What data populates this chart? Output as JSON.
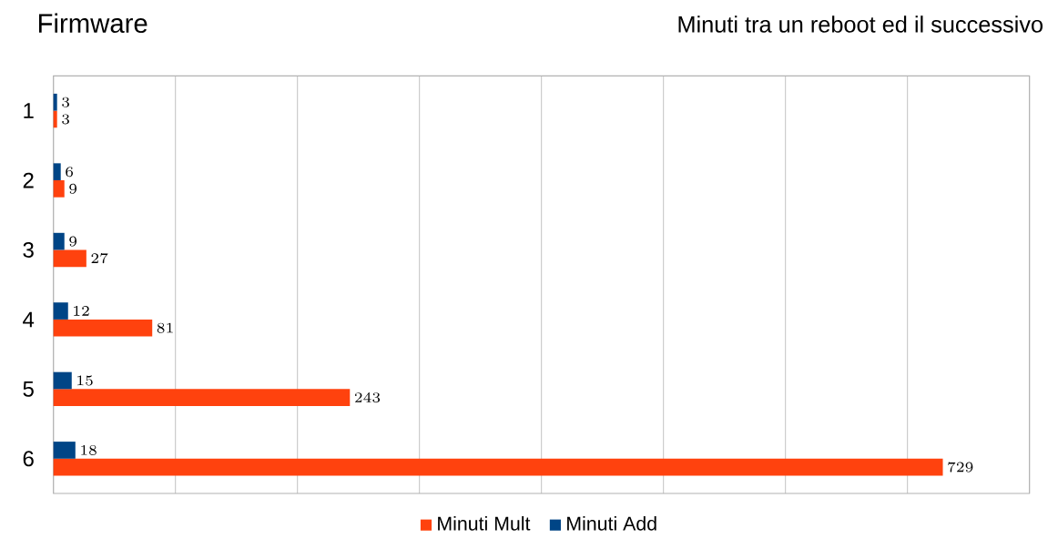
{
  "chart_data": {
    "type": "bar",
    "orientation": "horizontal",
    "title": "Firmware",
    "subtitle": "Minuti tra un reboot ed il successivo",
    "categories": [
      "1",
      "2",
      "3",
      "4",
      "5",
      "6"
    ],
    "series": [
      {
        "name": "Minuti Mult",
        "color": "#ff420e",
        "values": [
          3,
          9,
          27,
          81,
          243,
          729
        ]
      },
      {
        "name": "Minuti Add",
        "color": "#004586",
        "values": [
          3,
          6,
          9,
          12,
          15,
          18
        ]
      }
    ],
    "xlim": [
      0,
      800
    ],
    "xticks": [
      {
        "value": 0,
        "label": null
      },
      {
        "value": 100,
        "label": null
      },
      {
        "value": 200,
        "label": null
      },
      {
        "value": 300,
        "label": null
      },
      {
        "value": 400,
        "label": null
      },
      {
        "value": 500,
        "label": null
      },
      {
        "value": 600,
        "label": null
      },
      {
        "value": 700,
        "label": null
      },
      {
        "value": 800,
        "label": null
      }
    ],
    "tick_labels": "y",
    "grid": "x",
    "legend": "bottom",
    "data_labels": true
  }
}
